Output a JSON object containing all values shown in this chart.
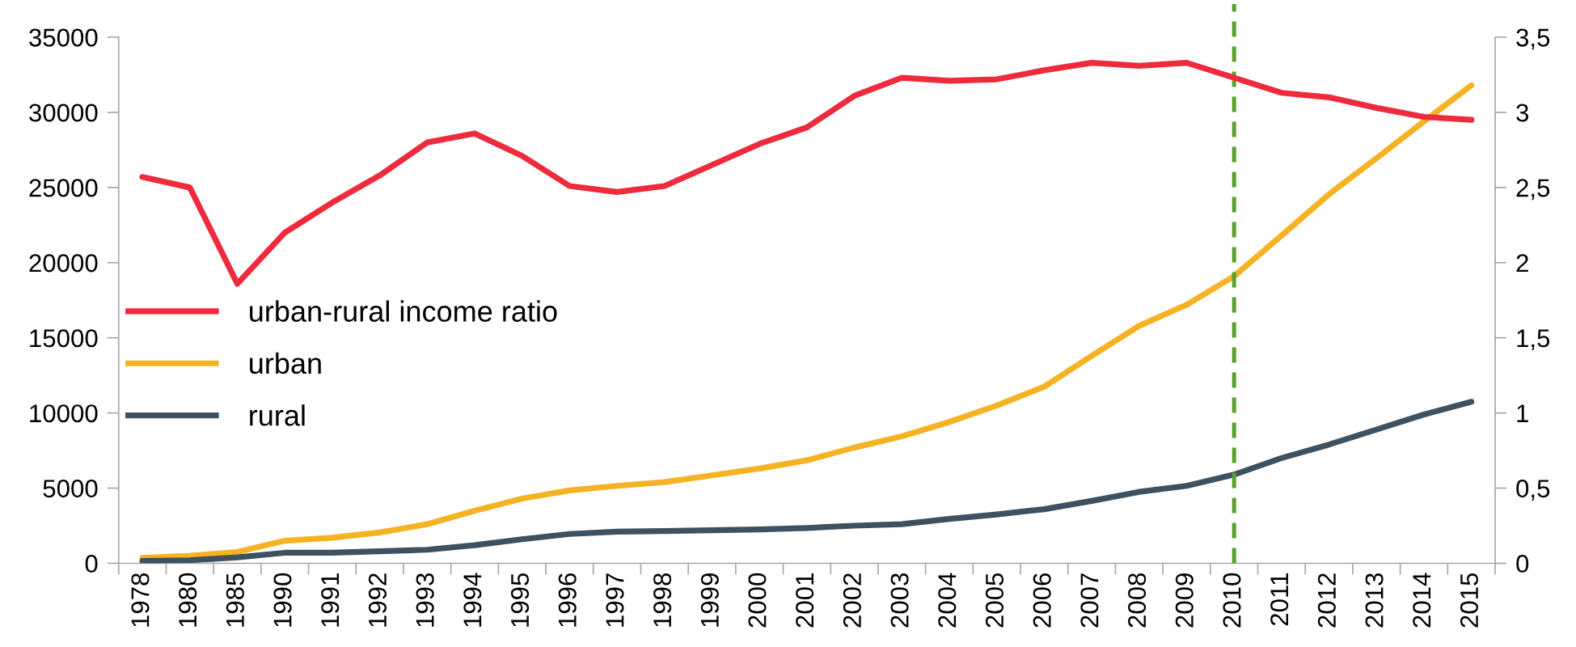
{
  "chart_data": {
    "type": "line",
    "categories": [
      "1978",
      "1980",
      "1985",
      "1990",
      "1991",
      "1992",
      "1993",
      "1994",
      "1995",
      "1996",
      "1997",
      "1998",
      "1999",
      "2000",
      "2001",
      "2002",
      "2003",
      "2004",
      "2005",
      "2006",
      "2007",
      "2008",
      "2009",
      "2010",
      "2011",
      "2012",
      "2013",
      "2014",
      "2015"
    ],
    "series": [
      {
        "name": "urban-rural income ratio",
        "color": "#ee2b3c",
        "axis": "y2",
        "values": [
          2.57,
          2.5,
          1.86,
          2.2,
          2.4,
          2.58,
          2.8,
          2.86,
          2.71,
          2.51,
          2.47,
          2.51,
          2.65,
          2.79,
          2.9,
          3.11,
          3.23,
          3.21,
          3.22,
          3.28,
          3.33,
          3.31,
          3.33,
          3.23,
          3.13,
          3.1,
          3.03,
          2.97,
          2.95
        ]
      },
      {
        "name": "urban",
        "color": "#f5b324",
        "values": [
          350,
          500,
          750,
          1500,
          1700,
          2050,
          2600,
          3500,
          4300,
          4850,
          5150,
          5400,
          5850,
          6300,
          6850,
          7700,
          8450,
          9400,
          10500,
          11750,
          13800,
          15800,
          17200,
          19100,
          21800,
          24550,
          26950,
          29400,
          31800
        ]
      },
      {
        "name": "rural",
        "color": "#3e5160",
        "values": [
          150,
          200,
          400,
          700,
          700,
          800,
          900,
          1200,
          1600,
          1950,
          2100,
          2150,
          2200,
          2250,
          2350,
          2500,
          2600,
          2950,
          3250,
          3600,
          4150,
          4750,
          5150,
          5900,
          7000,
          7900,
          8900,
          9900,
          10750
        ]
      }
    ],
    "ylim": [
      0,
      35000
    ],
    "yticks": [
      0,
      5000,
      10000,
      15000,
      20000,
      25000,
      30000,
      35000
    ],
    "y2lim": [
      0,
      3.5
    ],
    "y2ticks": [
      0,
      {
        "value": 0.5,
        "label": "0,5"
      },
      1,
      {
        "value": 1.5,
        "label": "1,5"
      },
      2,
      {
        "value": 2.5,
        "label": "2,5"
      },
      3,
      {
        "value": 3.5,
        "label": "3,5"
      }
    ],
    "ref_lines": [
      {
        "axis": "x",
        "value": "2010",
        "color": "#5aa02c",
        "line_style": "dashed"
      }
    ],
    "legend": "left",
    "grid": false,
    "marker": "none",
    "line_style": "solid"
  }
}
